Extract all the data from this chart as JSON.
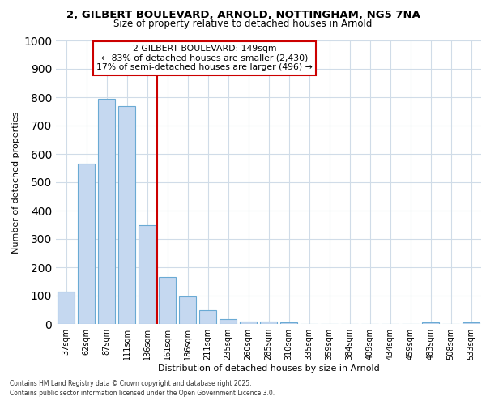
{
  "title_line1": "2, GILBERT BOULEVARD, ARNOLD, NOTTINGHAM, NG5 7NA",
  "title_line2": "Size of property relative to detached houses in Arnold",
  "categories": [
    "37sqm",
    "62sqm",
    "87sqm",
    "111sqm",
    "136sqm",
    "161sqm",
    "186sqm",
    "211sqm",
    "235sqm",
    "260sqm",
    "285sqm",
    "310sqm",
    "335sqm",
    "359sqm",
    "384sqm",
    "409sqm",
    "434sqm",
    "459sqm",
    "483sqm",
    "508sqm",
    "533sqm"
  ],
  "values": [
    115,
    565,
    795,
    770,
    350,
    165,
    97,
    50,
    18,
    10,
    10,
    7,
    0,
    0,
    0,
    0,
    0,
    0,
    7,
    0,
    7
  ],
  "bar_color": "#c5d8f0",
  "bar_edge_color": "#6aaad4",
  "background_color": "#ffffff",
  "grid_color": "#d0dce8",
  "ylabel": "Number of detached properties",
  "xlabel": "Distribution of detached houses by size in Arnold",
  "ylim": [
    0,
    1000
  ],
  "yticks": [
    0,
    100,
    200,
    300,
    400,
    500,
    600,
    700,
    800,
    900,
    1000
  ],
  "annotation_text": "2 GILBERT BOULEVARD: 149sqm\n← 83% of detached houses are smaller (2,430)\n17% of semi-detached houses are larger (496) →",
  "vline_color": "#cc0000",
  "vline_x": 4.5,
  "box_edge_color": "#cc0000",
  "footer_line1": "Contains HM Land Registry data © Crown copyright and database right 2025.",
  "footer_line2": "Contains public sector information licensed under the Open Government Licence 3.0."
}
